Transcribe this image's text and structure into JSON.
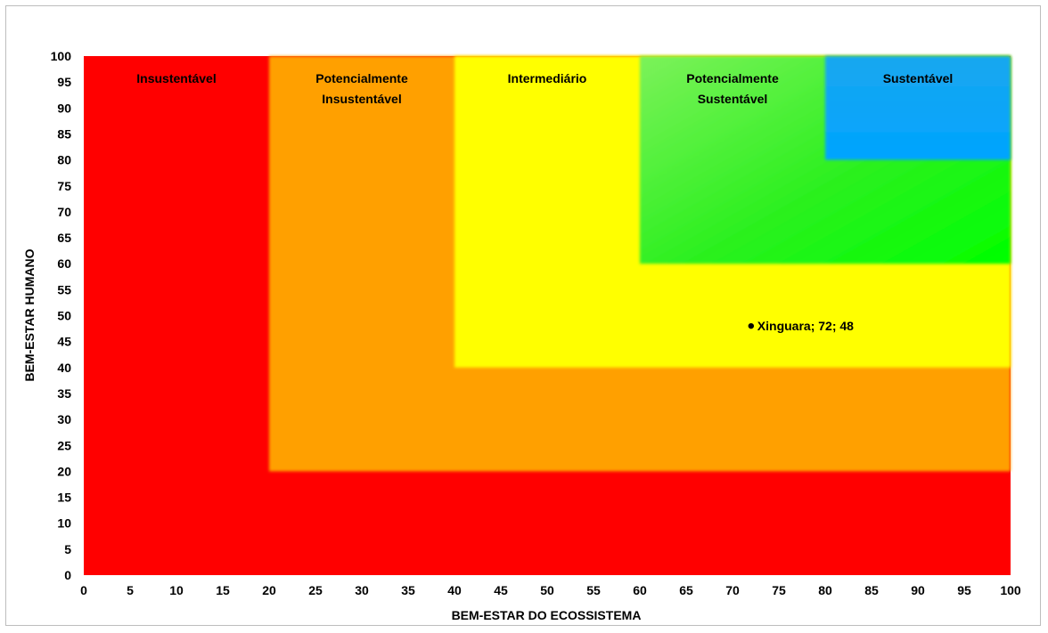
{
  "chart_data": {
    "type": "scatter",
    "title": "",
    "xlabel": "BEM-ESTAR DO ECOSSISTEMA",
    "ylabel": "BEM-ESTAR HUMANO",
    "xlim": [
      0,
      100
    ],
    "ylim": [
      0,
      100
    ],
    "x_ticks": [
      "0",
      "5",
      "10",
      "15",
      "20",
      "25",
      "30",
      "35",
      "40",
      "45",
      "50",
      "55",
      "60",
      "65",
      "70",
      "75",
      "80",
      "85",
      "90",
      "95",
      "100"
    ],
    "y_ticks": [
      "0",
      "5",
      "10",
      "15",
      "20",
      "25",
      "30",
      "35",
      "40",
      "45",
      "50",
      "55",
      "60",
      "65",
      "70",
      "75",
      "80",
      "85",
      "90",
      "95",
      "100"
    ],
    "grid": false,
    "zones": [
      {
        "name": "Insustentável",
        "lines": [
          "Insustentável"
        ],
        "from": 0,
        "to": 20,
        "color": "#ff0000"
      },
      {
        "name": "Potencialmente Insustentável",
        "lines": [
          "Potencialmente",
          "Insustentável"
        ],
        "from": 20,
        "to": 40,
        "color": "#ffa000"
      },
      {
        "name": "Intermediário",
        "lines": [
          "Intermediário"
        ],
        "from": 40,
        "to": 60,
        "color": "#ffff00"
      },
      {
        "name": "Potencialmente Sustentável",
        "lines": [
          "Potencialmente",
          "Sustentável"
        ],
        "from": 60,
        "to": 80,
        "color": "#00ff00"
      },
      {
        "name": "Sustentável",
        "lines": [
          "Sustentável"
        ],
        "from": 80,
        "to": 100,
        "color": "#00a0ff"
      }
    ],
    "points": [
      {
        "label": "Xinguara; 72; 48",
        "x": 72,
        "y": 48
      }
    ]
  }
}
